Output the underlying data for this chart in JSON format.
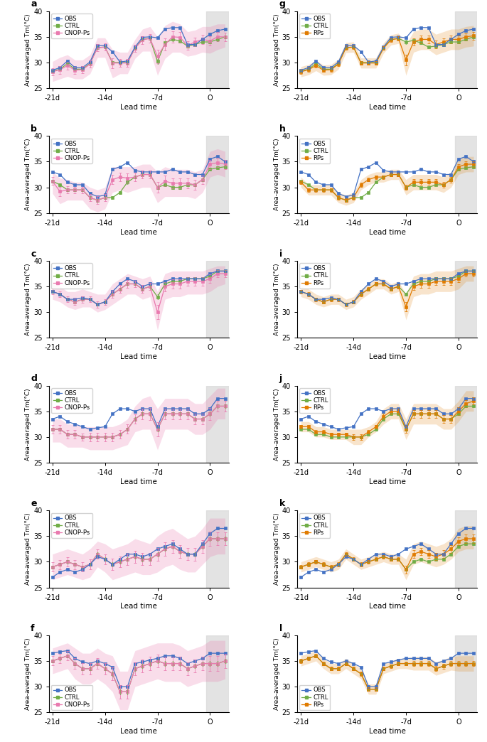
{
  "x": [
    -21,
    -20,
    -19,
    -18,
    -17,
    -16,
    -15,
    -14,
    -13,
    -12,
    -11,
    -10,
    -9,
    -8,
    -7,
    -6,
    -5,
    -4,
    -3,
    -2,
    -1,
    0,
    1,
    2
  ],
  "ylim": [
    25,
    40
  ],
  "yticks": [
    25,
    30,
    35,
    40
  ],
  "xticks": [
    -21,
    -14,
    -7,
    0
  ],
  "xticklabels": [
    "-21d",
    "-14d",
    "-7d",
    "O"
  ],
  "xlabel": "Lead time",
  "ylabel": "Area-averaged Tm(°C)",
  "obs_color": "#4472C4",
  "ctrl_color": "#70AD47",
  "cnop_color": "#E97AAF",
  "rps_color": "#E07B00",
  "panel_labels": [
    "a",
    "b",
    "c",
    "d",
    "e",
    "f",
    "g",
    "h",
    "i",
    "j",
    "k",
    "l"
  ],
  "panels_left": {
    "a_obs": [
      28.5,
      29.0,
      30.3,
      29.0,
      29.0,
      30.1,
      33.3,
      33.3,
      32.1,
      30.1,
      30.3,
      33.0,
      34.9,
      35.0,
      34.8,
      36.5,
      36.8,
      36.8,
      33.5,
      33.5,
      34.5,
      35.5,
      36.2,
      36.5
    ],
    "a_ctrl": [
      28.3,
      28.7,
      29.8,
      28.7,
      28.7,
      29.8,
      32.9,
      33.0,
      30.0,
      30.0,
      30.0,
      32.8,
      34.5,
      34.7,
      30.2,
      33.8,
      34.5,
      34.2,
      33.2,
      33.5,
      34.0,
      34.0,
      34.5,
      35.0
    ],
    "a_cnop": [
      28.2,
      28.6,
      29.4,
      28.5,
      28.6,
      29.7,
      32.9,
      33.0,
      29.9,
      29.9,
      29.9,
      32.8,
      34.4,
      34.7,
      31.2,
      33.5,
      35.0,
      34.9,
      33.3,
      34.0,
      34.5,
      34.2,
      35.0,
      35.0
    ],
    "a_shade_up": [
      30.2,
      31.0,
      31.5,
      30.5,
      30.5,
      31.5,
      34.8,
      34.8,
      32.5,
      32.0,
      32.0,
      34.5,
      36.5,
      37.0,
      35.0,
      37.2,
      38.0,
      37.5,
      36.0,
      36.3,
      37.0,
      37.0,
      37.5,
      37.5
    ],
    "a_shade_dn": [
      26.3,
      26.8,
      27.3,
      26.8,
      26.8,
      27.8,
      31.0,
      31.0,
      27.0,
      27.8,
      27.8,
      30.8,
      32.2,
      32.2,
      27.5,
      30.8,
      32.0,
      32.0,
      31.2,
      31.5,
      32.0,
      31.8,
      32.5,
      33.0
    ],
    "b_obs": [
      33.0,
      32.5,
      31.0,
      30.5,
      30.5,
      28.8,
      28.2,
      28.5,
      33.5,
      34.0,
      34.8,
      33.3,
      33.0,
      33.0,
      33.0,
      33.0,
      33.5,
      33.0,
      33.0,
      32.5,
      32.5,
      35.5,
      36.0,
      35.0
    ],
    "b_ctrl": [
      31.2,
      30.5,
      29.5,
      29.5,
      29.5,
      28.0,
      27.5,
      28.0,
      28.0,
      29.0,
      31.0,
      32.0,
      32.5,
      32.5,
      30.0,
      30.5,
      30.0,
      30.0,
      30.5,
      30.5,
      31.5,
      33.5,
      33.8,
      34.0
    ],
    "b_cnop": [
      31.2,
      29.2,
      29.5,
      29.5,
      29.5,
      28.0,
      27.5,
      28.0,
      31.5,
      32.0,
      31.8,
      32.0,
      32.5,
      32.5,
      30.0,
      31.2,
      30.8,
      30.8,
      30.8,
      30.5,
      31.5,
      34.5,
      34.8,
      34.5
    ],
    "b_shade_up": [
      33.0,
      31.8,
      31.5,
      31.0,
      31.0,
      30.0,
      29.5,
      30.0,
      34.0,
      34.0,
      34.0,
      34.0,
      34.5,
      34.5,
      33.0,
      34.0,
      33.5,
      33.5,
      33.5,
      33.0,
      33.5,
      37.0,
      37.5,
      37.0
    ],
    "b_shade_dn": [
      28.8,
      26.8,
      27.5,
      27.5,
      27.5,
      25.8,
      25.2,
      25.8,
      29.0,
      29.5,
      29.0,
      29.5,
      30.0,
      30.0,
      27.0,
      28.2,
      28.2,
      28.2,
      28.2,
      27.8,
      29.0,
      32.0,
      32.5,
      32.0
    ],
    "c_obs": [
      34.0,
      33.5,
      32.5,
      32.5,
      32.8,
      32.5,
      31.5,
      32.0,
      34.0,
      35.5,
      36.5,
      36.0,
      35.0,
      35.5,
      35.5,
      36.0,
      36.5,
      36.5,
      36.5,
      36.5,
      36.5,
      37.5,
      38.0,
      38.0
    ],
    "c_ctrl": [
      34.0,
      33.5,
      32.5,
      32.0,
      32.5,
      32.5,
      31.5,
      32.0,
      33.5,
      34.5,
      35.5,
      35.5,
      34.5,
      35.0,
      33.0,
      35.5,
      36.0,
      36.0,
      36.5,
      36.5,
      36.5,
      37.0,
      38.0,
      38.0
    ],
    "c_cnop": [
      34.0,
      33.5,
      32.5,
      32.0,
      32.5,
      32.5,
      31.5,
      32.0,
      33.5,
      34.5,
      35.5,
      35.5,
      34.5,
      35.0,
      30.0,
      35.0,
      35.5,
      35.5,
      36.0,
      36.0,
      36.0,
      36.5,
      37.5,
      37.5
    ],
    "c_shade_up": [
      35.5,
      35.0,
      34.0,
      34.0,
      34.5,
      34.0,
      33.5,
      33.5,
      35.5,
      36.5,
      37.5,
      37.0,
      36.5,
      37.0,
      34.0,
      37.5,
      38.0,
      38.0,
      38.0,
      38.0,
      38.0,
      38.5,
      39.0,
      39.0
    ],
    "c_shade_dn": [
      32.5,
      32.0,
      31.0,
      30.5,
      31.0,
      31.0,
      30.0,
      30.5,
      31.5,
      32.5,
      33.5,
      33.5,
      32.5,
      33.0,
      26.5,
      32.5,
      33.0,
      33.0,
      33.5,
      33.5,
      33.5,
      34.0,
      35.0,
      35.5
    ],
    "d_obs": [
      33.5,
      34.0,
      33.0,
      32.5,
      32.0,
      31.5,
      31.8,
      32.0,
      34.5,
      35.5,
      35.5,
      35.0,
      35.5,
      35.5,
      32.0,
      35.5,
      35.5,
      35.5,
      35.5,
      34.5,
      34.5,
      35.5,
      37.5,
      37.5
    ],
    "d_ctrl": [
      31.5,
      31.5,
      30.5,
      30.5,
      30.0,
      30.0,
      30.0,
      30.0,
      30.0,
      30.5,
      31.5,
      33.5,
      34.5,
      34.5,
      31.5,
      34.5,
      34.5,
      34.5,
      34.5,
      33.5,
      33.5,
      34.5,
      36.0,
      36.0
    ],
    "d_cnop": [
      31.5,
      31.5,
      30.5,
      30.5,
      30.0,
      30.0,
      30.0,
      30.0,
      30.0,
      30.5,
      31.5,
      33.5,
      34.5,
      34.5,
      31.5,
      34.5,
      34.5,
      34.5,
      34.5,
      33.5,
      33.5,
      34.5,
      36.0,
      36.0
    ],
    "d_shade_up": [
      33.5,
      33.5,
      32.5,
      32.5,
      32.0,
      32.0,
      32.0,
      32.0,
      32.0,
      32.5,
      33.5,
      36.0,
      37.5,
      38.0,
      35.5,
      37.5,
      37.5,
      37.5,
      37.5,
      36.5,
      36.5,
      38.0,
      39.5,
      39.5
    ],
    "d_shade_dn": [
      29.0,
      29.0,
      28.0,
      28.0,
      28.0,
      27.5,
      27.5,
      27.5,
      27.5,
      28.0,
      28.5,
      31.0,
      31.5,
      31.5,
      27.5,
      31.5,
      31.5,
      31.5,
      31.5,
      30.5,
      30.5,
      31.5,
      33.5,
      33.5
    ],
    "e_obs": [
      27.0,
      28.0,
      28.5,
      28.0,
      28.5,
      29.5,
      31.0,
      30.5,
      29.5,
      30.5,
      31.5,
      31.5,
      31.0,
      31.5,
      32.5,
      33.0,
      33.5,
      32.5,
      31.5,
      31.5,
      33.5,
      35.5,
      36.5,
      36.5
    ],
    "e_ctrl": [
      29.0,
      29.5,
      30.0,
      29.5,
      29.0,
      29.5,
      31.5,
      30.5,
      29.5,
      30.0,
      30.5,
      31.0,
      30.5,
      30.5,
      31.5,
      32.5,
      33.0,
      32.0,
      31.5,
      31.5,
      33.0,
      34.5,
      34.5,
      34.5
    ],
    "e_cnop": [
      29.0,
      29.5,
      30.0,
      29.5,
      29.0,
      29.5,
      31.5,
      30.5,
      29.5,
      30.0,
      30.5,
      31.0,
      30.5,
      30.5,
      31.5,
      32.5,
      33.0,
      32.0,
      31.5,
      31.5,
      33.0,
      34.5,
      34.5,
      34.5
    ],
    "e_shade_up": [
      31.5,
      32.0,
      32.5,
      32.0,
      31.5,
      32.5,
      34.0,
      33.5,
      32.5,
      33.0,
      33.5,
      34.5,
      34.0,
      33.5,
      35.0,
      36.0,
      36.5,
      35.5,
      34.5,
      35.0,
      36.5,
      38.5,
      38.5,
      38.5
    ],
    "e_shade_dn": [
      26.5,
      27.0,
      27.5,
      27.0,
      26.5,
      27.0,
      29.0,
      28.0,
      26.5,
      27.0,
      27.5,
      28.0,
      27.5,
      27.5,
      28.0,
      29.0,
      29.5,
      28.5,
      28.0,
      28.0,
      29.5,
      31.0,
      31.5,
      31.5
    ],
    "f_obs": [
      36.5,
      36.8,
      37.0,
      35.5,
      34.8,
      34.5,
      35.0,
      34.5,
      33.8,
      30.0,
      30.0,
      34.5,
      34.8,
      35.2,
      35.5,
      36.0,
      36.0,
      35.5,
      34.5,
      35.0,
      35.5,
      36.5,
      36.5,
      36.5
    ],
    "f_ctrl": [
      35.0,
      35.5,
      36.0,
      34.5,
      33.5,
      33.5,
      34.5,
      33.5,
      32.5,
      29.0,
      29.0,
      33.5,
      34.0,
      34.5,
      35.0,
      34.5,
      34.5,
      34.5,
      33.5,
      34.0,
      34.5,
      34.5,
      34.5,
      35.0
    ],
    "f_cnop": [
      35.0,
      35.5,
      36.0,
      34.5,
      33.5,
      33.5,
      34.5,
      33.5,
      32.5,
      29.0,
      29.0,
      33.5,
      34.0,
      34.5,
      35.0,
      34.5,
      34.5,
      34.5,
      33.5,
      34.0,
      34.5,
      34.5,
      34.5,
      35.0
    ],
    "f_shade_up": [
      37.5,
      38.0,
      38.5,
      37.5,
      36.5,
      36.5,
      37.5,
      36.5,
      36.0,
      33.0,
      33.0,
      37.0,
      37.5,
      38.0,
      38.5,
      38.5,
      38.5,
      38.0,
      37.0,
      37.5,
      38.0,
      39.0,
      39.0,
      39.0
    ],
    "f_shade_dn": [
      32.5,
      33.0,
      33.5,
      31.5,
      30.5,
      30.5,
      31.5,
      30.5,
      29.0,
      25.5,
      25.5,
      30.0,
      30.5,
      31.0,
      31.5,
      31.0,
      31.0,
      31.0,
      30.0,
      30.5,
      31.0,
      31.0,
      31.0,
      31.5
    ]
  },
  "panels_right": {
    "g_obs": [
      28.5,
      29.0,
      30.3,
      29.0,
      29.0,
      30.1,
      33.3,
      33.3,
      32.1,
      30.1,
      30.3,
      33.0,
      34.9,
      35.0,
      34.8,
      36.5,
      36.8,
      36.8,
      33.5,
      33.5,
      34.5,
      35.5,
      36.2,
      36.5
    ],
    "g_ctrl": [
      28.3,
      28.7,
      29.8,
      28.7,
      28.7,
      29.8,
      32.9,
      33.0,
      30.0,
      30.0,
      30.0,
      32.8,
      34.5,
      34.7,
      34.0,
      34.3,
      33.8,
      33.0,
      33.2,
      33.5,
      34.0,
      34.0,
      34.5,
      35.0
    ],
    "g_rps": [
      28.2,
      28.6,
      29.4,
      28.5,
      28.6,
      29.7,
      32.9,
      33.0,
      29.9,
      29.9,
      29.9,
      32.8,
      34.4,
      34.7,
      30.5,
      34.0,
      34.5,
      34.5,
      33.5,
      34.0,
      34.5,
      34.5,
      35.0,
      35.2
    ],
    "g_shade_up": [
      29.2,
      29.6,
      30.4,
      29.5,
      29.6,
      30.7,
      33.9,
      34.0,
      30.9,
      30.9,
      30.9,
      33.8,
      35.4,
      35.7,
      33.5,
      36.0,
      36.5,
      36.5,
      35.5,
      36.0,
      36.5,
      36.5,
      37.0,
      37.2
    ],
    "g_shade_dn": [
      27.2,
      27.6,
      28.4,
      27.5,
      27.6,
      28.7,
      31.9,
      32.0,
      28.9,
      28.9,
      28.9,
      31.8,
      33.4,
      33.7,
      27.5,
      32.0,
      32.5,
      32.5,
      31.5,
      32.0,
      32.5,
      32.5,
      33.0,
      33.2
    ],
    "h_obs": [
      33.0,
      32.5,
      31.0,
      30.5,
      30.5,
      28.8,
      28.2,
      28.5,
      33.5,
      34.0,
      34.8,
      33.3,
      33.0,
      33.0,
      33.0,
      33.0,
      33.5,
      33.0,
      33.0,
      32.5,
      32.5,
      35.5,
      36.0,
      35.0
    ],
    "h_ctrl": [
      31.2,
      30.5,
      29.5,
      29.5,
      29.5,
      28.0,
      27.5,
      28.0,
      28.0,
      29.0,
      31.0,
      32.0,
      32.5,
      32.5,
      30.0,
      30.5,
      30.0,
      30.0,
      30.5,
      30.5,
      31.5,
      33.5,
      33.8,
      34.0
    ],
    "h_rps": [
      31.0,
      29.5,
      29.5,
      29.5,
      29.5,
      28.0,
      27.5,
      28.0,
      30.5,
      31.5,
      32.0,
      32.0,
      32.5,
      32.5,
      30.0,
      31.0,
      31.0,
      31.0,
      31.0,
      30.5,
      31.5,
      34.0,
      34.5,
      34.5
    ],
    "h_shade_up": [
      32.0,
      30.5,
      30.5,
      30.5,
      30.5,
      29.0,
      28.5,
      29.0,
      31.5,
      32.5,
      33.0,
      33.0,
      33.5,
      33.5,
      31.5,
      32.5,
      32.5,
      32.5,
      32.5,
      32.0,
      33.0,
      35.5,
      36.0,
      36.0
    ],
    "h_shade_dn": [
      30.0,
      28.5,
      28.5,
      28.5,
      28.5,
      27.0,
      26.5,
      27.0,
      29.5,
      30.5,
      31.0,
      31.0,
      31.5,
      31.5,
      28.5,
      29.5,
      29.5,
      29.5,
      29.5,
      29.0,
      30.0,
      32.5,
      33.0,
      33.0
    ],
    "i_obs": [
      34.0,
      33.5,
      32.5,
      32.5,
      32.8,
      32.5,
      31.5,
      32.0,
      34.0,
      35.5,
      36.5,
      36.0,
      35.0,
      35.5,
      35.5,
      36.0,
      36.5,
      36.5,
      36.5,
      36.5,
      36.5,
      37.5,
      38.0,
      38.0
    ],
    "i_ctrl": [
      34.0,
      33.5,
      32.5,
      32.0,
      32.5,
      32.5,
      31.5,
      32.0,
      33.5,
      34.5,
      35.5,
      35.5,
      34.5,
      35.0,
      33.5,
      35.5,
      36.0,
      36.0,
      36.5,
      36.5,
      36.5,
      37.0,
      38.0,
      38.0
    ],
    "i_rps": [
      34.0,
      33.5,
      32.5,
      32.0,
      32.5,
      32.5,
      31.5,
      32.0,
      33.5,
      34.5,
      35.5,
      35.5,
      34.5,
      35.0,
      31.0,
      35.0,
      35.5,
      35.5,
      36.0,
      36.0,
      36.0,
      36.5,
      37.5,
      37.5
    ],
    "i_shade_up": [
      35.0,
      34.5,
      33.5,
      33.0,
      33.5,
      33.5,
      32.5,
      33.0,
      34.5,
      35.5,
      36.5,
      36.5,
      35.5,
      36.0,
      33.5,
      37.0,
      37.5,
      37.5,
      38.0,
      38.0,
      38.0,
      38.5,
      39.0,
      39.0
    ],
    "i_shade_dn": [
      33.0,
      32.5,
      31.5,
      31.0,
      31.5,
      31.5,
      30.5,
      31.0,
      32.5,
      33.5,
      34.5,
      34.5,
      33.5,
      34.0,
      28.5,
      33.0,
      33.5,
      33.5,
      34.0,
      34.0,
      34.0,
      34.5,
      36.0,
      36.0
    ],
    "j_obs": [
      33.5,
      34.0,
      33.0,
      32.5,
      32.0,
      31.5,
      31.8,
      32.0,
      34.5,
      35.5,
      35.5,
      35.0,
      35.5,
      35.5,
      32.0,
      35.5,
      35.5,
      35.5,
      35.5,
      34.5,
      34.5,
      35.5,
      37.5,
      37.5
    ],
    "j_ctrl": [
      31.5,
      31.5,
      30.5,
      30.5,
      30.0,
      30.0,
      30.0,
      30.0,
      30.0,
      30.5,
      31.5,
      33.5,
      34.5,
      34.5,
      31.5,
      34.5,
      34.5,
      34.5,
      34.5,
      33.5,
      33.5,
      34.5,
      36.0,
      36.0
    ],
    "j_rps": [
      32.0,
      32.0,
      31.0,
      31.0,
      30.5,
      30.5,
      30.5,
      30.0,
      30.0,
      31.0,
      32.0,
      34.0,
      35.0,
      35.0,
      31.5,
      34.5,
      34.5,
      34.5,
      34.5,
      33.5,
      33.5,
      35.0,
      36.5,
      37.0
    ],
    "j_shade_up": [
      33.0,
      33.0,
      32.0,
      32.0,
      31.5,
      31.5,
      31.5,
      31.5,
      31.5,
      32.0,
      33.0,
      35.5,
      36.5,
      36.5,
      33.5,
      36.5,
      36.5,
      36.5,
      36.5,
      35.5,
      35.5,
      37.0,
      39.0,
      39.0
    ],
    "j_shade_dn": [
      31.0,
      31.0,
      30.0,
      30.0,
      29.5,
      29.5,
      29.5,
      28.5,
      28.5,
      30.0,
      31.0,
      32.5,
      33.5,
      33.5,
      29.5,
      32.5,
      32.5,
      32.5,
      32.5,
      31.5,
      31.5,
      33.0,
      35.0,
      35.0
    ],
    "k_obs": [
      27.0,
      28.0,
      28.5,
      28.0,
      28.5,
      29.5,
      31.0,
      30.5,
      29.5,
      30.5,
      31.5,
      31.5,
      31.0,
      31.5,
      32.5,
      33.0,
      33.5,
      32.5,
      31.5,
      31.5,
      33.5,
      35.5,
      36.5,
      36.5
    ],
    "k_ctrl": [
      29.0,
      29.5,
      30.0,
      29.5,
      29.0,
      29.5,
      31.5,
      30.5,
      29.5,
      30.0,
      30.5,
      31.0,
      30.5,
      30.5,
      28.5,
      30.0,
      30.5,
      30.0,
      30.5,
      30.5,
      31.5,
      33.0,
      33.5,
      33.5
    ],
    "k_rps": [
      29.0,
      29.5,
      30.0,
      29.5,
      29.0,
      29.5,
      31.5,
      30.5,
      29.5,
      30.0,
      30.5,
      31.0,
      30.5,
      30.5,
      28.5,
      31.5,
      32.0,
      31.5,
      31.0,
      31.5,
      32.5,
      34.0,
      34.5,
      34.5
    ],
    "k_shade_up": [
      30.0,
      30.5,
      31.0,
      30.5,
      30.0,
      30.5,
      32.5,
      31.5,
      30.5,
      31.0,
      31.5,
      32.0,
      31.5,
      31.5,
      30.5,
      33.5,
      34.0,
      33.5,
      33.0,
      33.5,
      34.5,
      36.5,
      37.0,
      37.0
    ],
    "k_shade_dn": [
      28.0,
      28.5,
      29.0,
      28.5,
      28.0,
      28.5,
      30.5,
      29.5,
      28.5,
      29.0,
      29.5,
      30.0,
      29.5,
      29.5,
      26.5,
      29.5,
      30.0,
      29.5,
      29.0,
      29.5,
      30.5,
      32.0,
      32.5,
      32.5
    ],
    "l_obs": [
      36.5,
      36.8,
      37.0,
      35.5,
      34.8,
      34.5,
      35.0,
      34.5,
      33.8,
      30.0,
      30.0,
      34.5,
      34.8,
      35.2,
      35.5,
      35.5,
      35.5,
      35.5,
      34.5,
      35.0,
      35.5,
      36.5,
      36.5,
      36.5
    ],
    "l_ctrl": [
      35.0,
      35.5,
      36.0,
      34.5,
      33.5,
      33.5,
      34.5,
      33.5,
      32.5,
      29.5,
      29.5,
      33.5,
      34.0,
      34.5,
      34.5,
      34.5,
      34.5,
      34.5,
      33.5,
      34.0,
      34.5,
      34.5,
      34.5,
      34.5
    ],
    "l_rps": [
      35.0,
      35.5,
      36.0,
      34.5,
      33.5,
      33.5,
      34.5,
      33.5,
      32.5,
      29.5,
      29.5,
      33.5,
      34.0,
      34.5,
      34.5,
      34.5,
      34.5,
      34.5,
      33.5,
      34.0,
      34.5,
      34.5,
      34.5,
      34.5
    ],
    "l_shade_up": [
      36.0,
      36.5,
      37.0,
      35.5,
      34.5,
      34.5,
      35.5,
      34.5,
      33.5,
      30.5,
      30.5,
      34.5,
      35.0,
      35.5,
      35.5,
      35.8,
      35.8,
      35.8,
      34.8,
      35.3,
      35.8,
      36.0,
      36.0,
      36.0
    ],
    "l_shade_dn": [
      34.0,
      34.5,
      35.0,
      33.5,
      32.5,
      32.5,
      33.5,
      32.5,
      31.5,
      28.5,
      28.5,
      32.5,
      33.0,
      33.5,
      33.5,
      33.2,
      33.2,
      33.2,
      32.2,
      32.7,
      33.2,
      33.0,
      33.0,
      33.0
    ]
  },
  "legend_loc": {
    "a": "upper left",
    "b": "upper left",
    "c": "upper left",
    "d": "upper left",
    "e": "upper left",
    "f": "lower left",
    "g": "upper left",
    "h": "upper left",
    "i": "upper left",
    "j": "upper left",
    "k": "upper left",
    "l": "lower left"
  }
}
